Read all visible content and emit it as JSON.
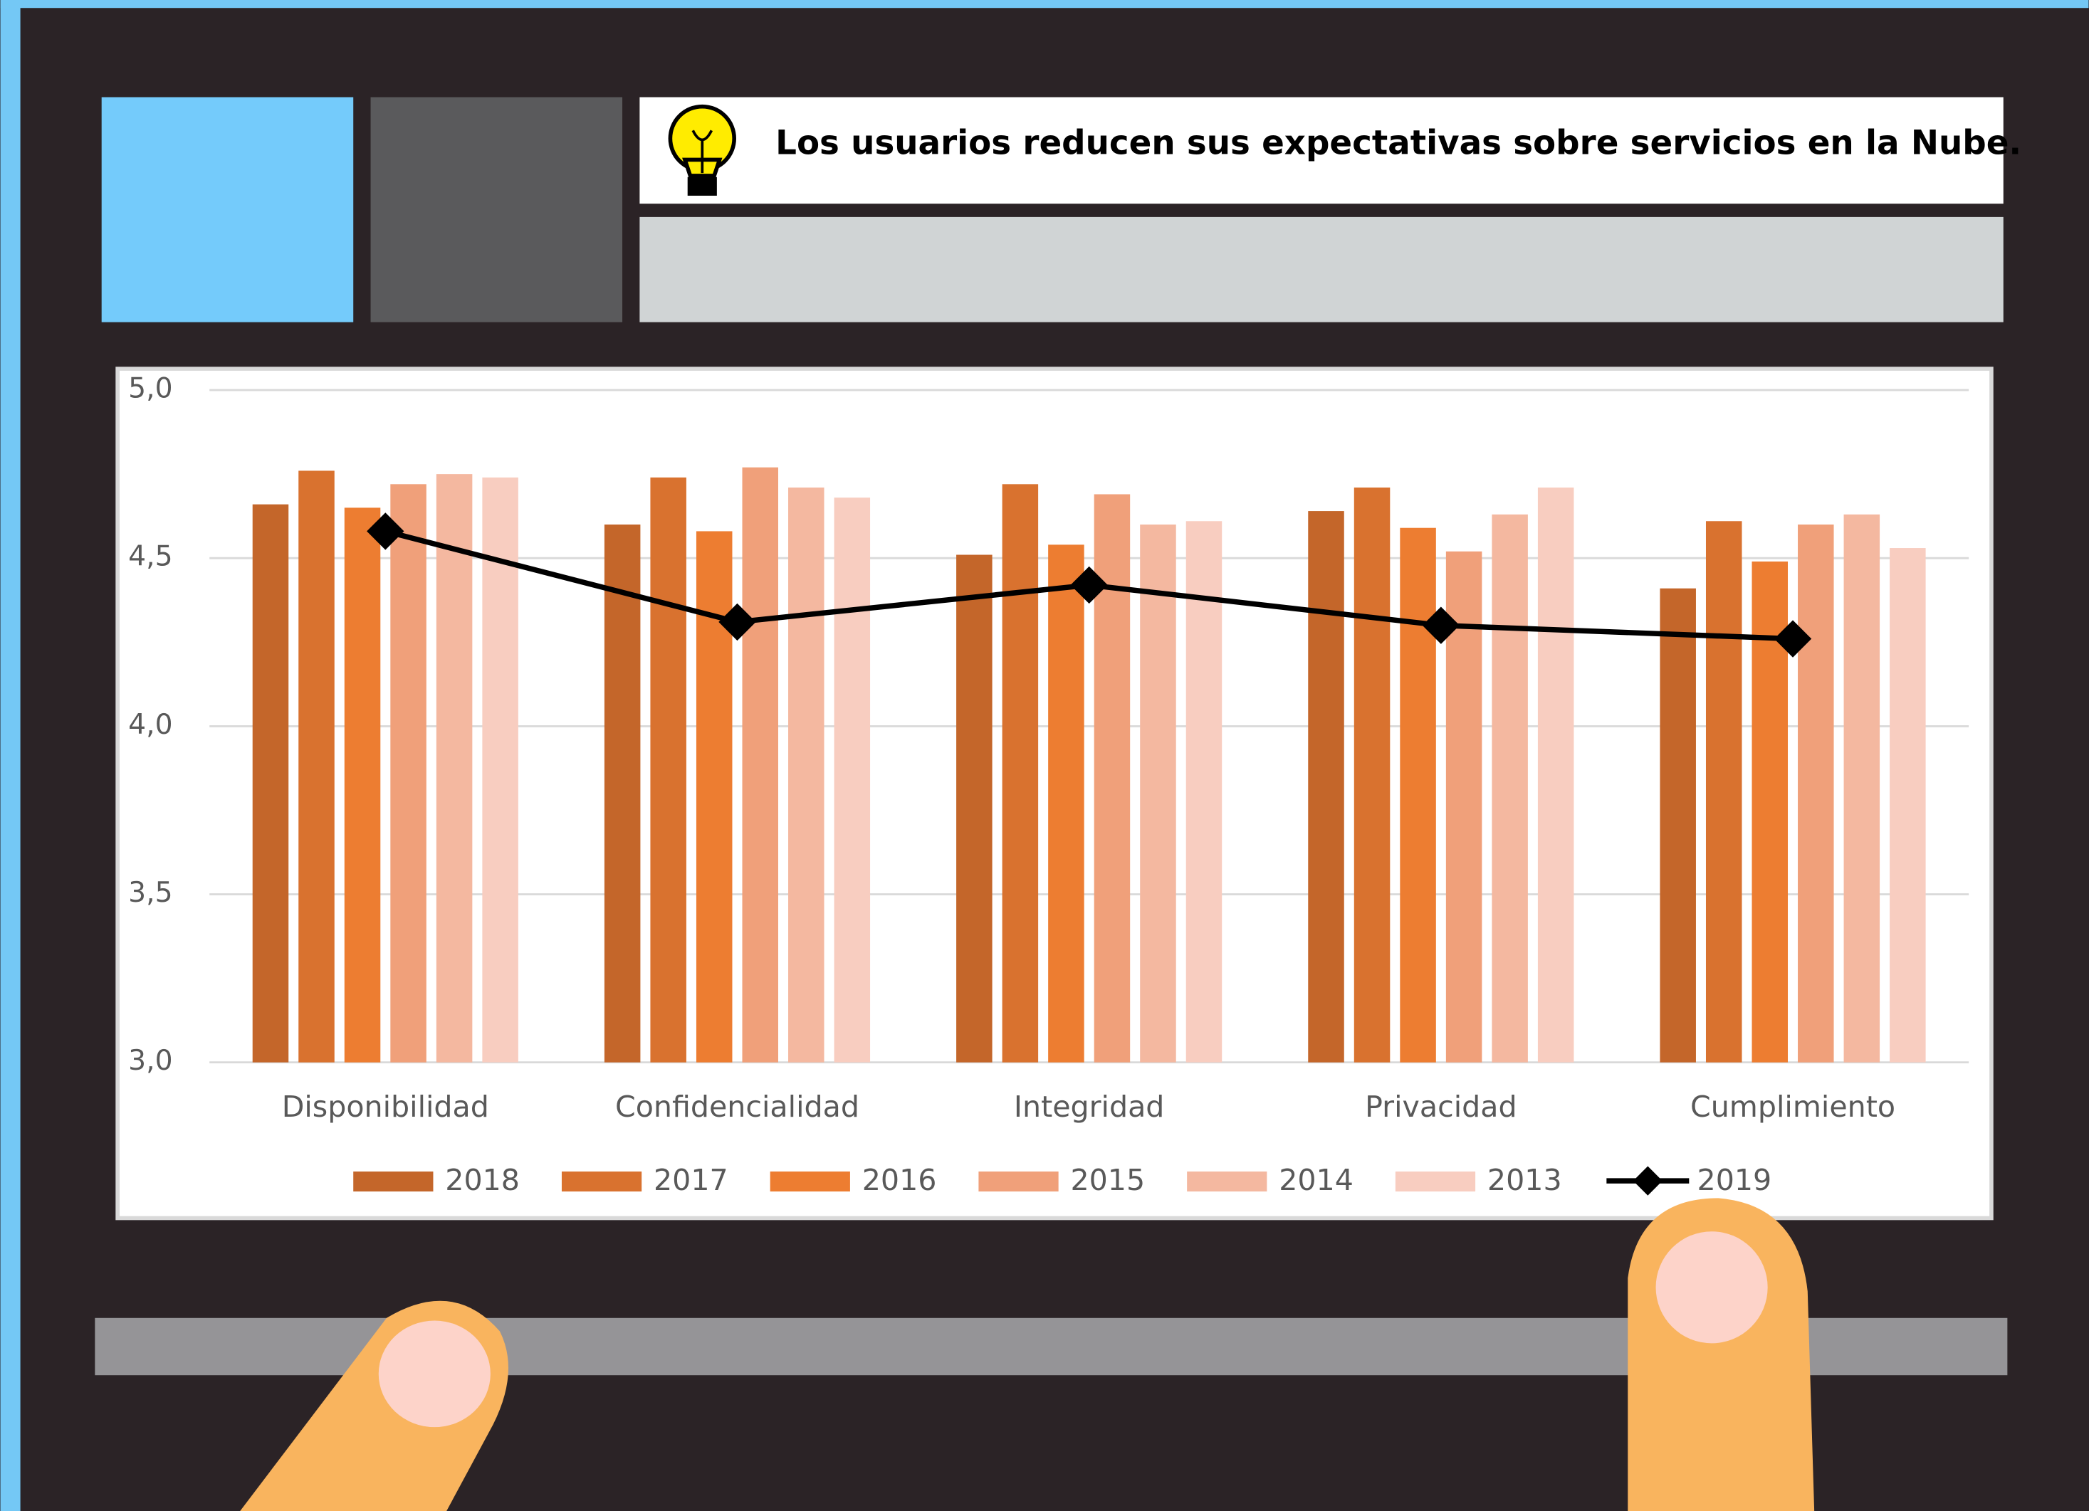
{
  "chart_data": {
    "type": "bar",
    "title": "Los usuarios reducen sus expectativas sobre servicios en la Nube.",
    "categories": [
      "Disponibilidad",
      "Confidencialidad",
      "Integridad",
      "Privacidad",
      "Cumplimiento"
    ],
    "series": [
      {
        "name": "2018",
        "color": "#c4662a",
        "values": [
          4.66,
          4.6,
          4.51,
          4.64,
          4.41
        ]
      },
      {
        "name": "2017",
        "color": "#d9722f",
        "values": [
          4.76,
          4.74,
          4.72,
          4.71,
          4.61
        ]
      },
      {
        "name": "2016",
        "color": "#ed7d31",
        "values": [
          4.65,
          4.58,
          4.54,
          4.59,
          4.49
        ]
      },
      {
        "name": "2015",
        "color": "#f0a07a",
        "values": [
          4.72,
          4.77,
          4.69,
          4.52,
          4.6
        ]
      },
      {
        "name": "2014",
        "color": "#f4b8a0",
        "values": [
          4.75,
          4.71,
          4.6,
          4.63,
          4.63
        ]
      },
      {
        "name": "2013",
        "color": "#f8cdc0",
        "values": [
          4.74,
          4.68,
          4.61,
          4.71,
          4.53
        ]
      },
      {
        "name": "2019",
        "color": "#000000",
        "type": "line",
        "values": [
          4.58,
          4.31,
          4.42,
          4.3,
          4.26
        ]
      }
    ],
    "ylim": [
      3,
      5
    ],
    "yticks": [
      {
        "value": 3,
        "label": "3,0"
      },
      {
        "value": 3.5,
        "label": "3,5"
      },
      {
        "value": 4,
        "label": "4,0"
      },
      {
        "value": 4.5,
        "label": "4,5"
      },
      {
        "value": 5,
        "label": "5,0"
      }
    ],
    "grid": true
  }
}
